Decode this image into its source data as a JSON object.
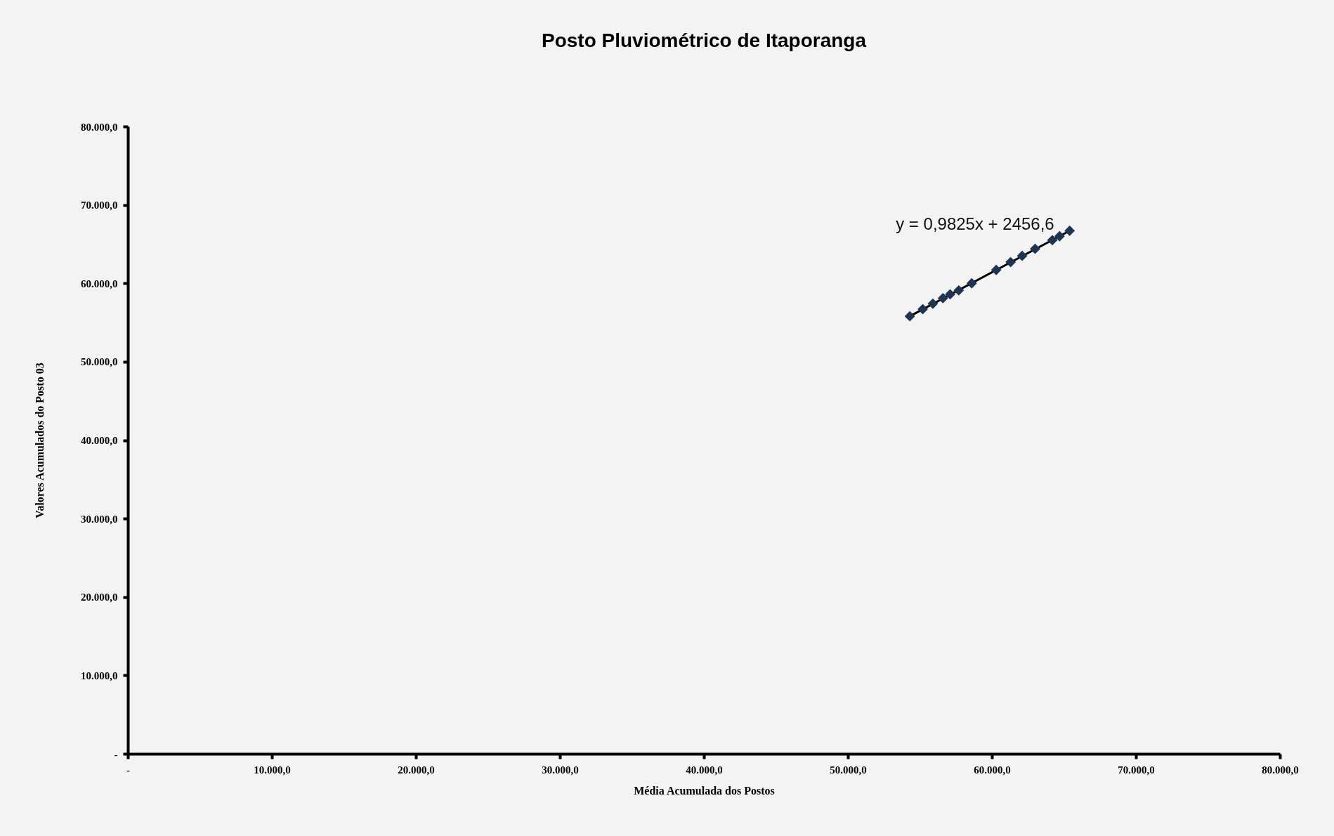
{
  "chart_data": {
    "type": "scatter",
    "title": "Posto Pluviométrico de Itaporanga",
    "xlabel": "Média Acumulada dos Postos",
    "ylabel": "Valores Acumulados do Posto 03",
    "xlim": [
      0,
      80000
    ],
    "ylim": [
      0,
      80000
    ],
    "xticks": [
      {
        "value": 0,
        "label": "-"
      },
      {
        "value": 10000,
        "label": "10.000,0"
      },
      {
        "value": 20000,
        "label": "20.000,0"
      },
      {
        "value": 30000,
        "label": "30.000,0"
      },
      {
        "value": 40000,
        "label": "40.000,0"
      },
      {
        "value": 50000,
        "label": "50.000,0"
      },
      {
        "value": 60000,
        "label": "60.000,0"
      },
      {
        "value": 70000,
        "label": "70.000,0"
      },
      {
        "value": 80000,
        "label": "80.000,0"
      }
    ],
    "yticks": [
      {
        "value": 0,
        "label": "-"
      },
      {
        "value": 10000,
        "label": "10.000,0"
      },
      {
        "value": 20000,
        "label": "20.000,0"
      },
      {
        "value": 30000,
        "label": "30.000,0"
      },
      {
        "value": 40000,
        "label": "40.000,0"
      },
      {
        "value": 50000,
        "label": "50.000,0"
      },
      {
        "value": 60000,
        "label": "60.000,0"
      },
      {
        "value": 70000,
        "label": "70.000,0"
      },
      {
        "value": 80000,
        "label": "80.000,0"
      }
    ],
    "grid": false,
    "series": [
      {
        "color": "#1f3352",
        "marker": "diamond",
        "x": [
          54300,
          55200,
          55900,
          56600,
          57100,
          57700,
          58600,
          60300,
          61300,
          62100,
          63000,
          64200,
          64700,
          65400
        ],
        "values": [
          55800,
          56700,
          57400,
          58100,
          58600,
          59100,
          60000,
          61700,
          62700,
          63500,
          64400,
          65500,
          66000,
          66700
        ]
      },
      {
        "type": "line",
        "color": "#000000",
        "line_style": "solid",
        "x": [
          54300,
          65400
        ],
        "values": [
          55800,
          66700
        ]
      }
    ],
    "annotations": [
      "y = 0,9825x + 2456,6"
    ]
  }
}
